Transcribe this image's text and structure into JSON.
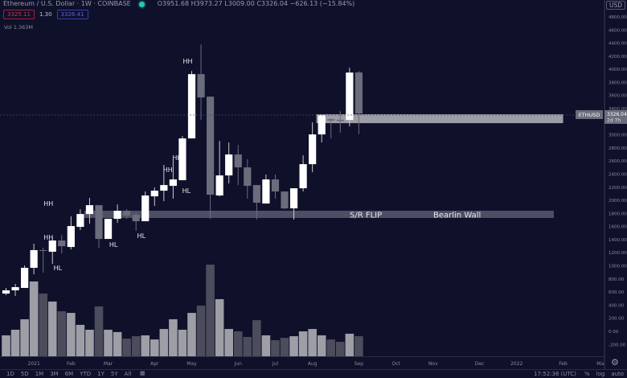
{
  "header": {
    "symbol_title": "Ethereum / U.S. Dollar · 1W · COINBASE",
    "ohlc": "O3951.68 H3973.27 L3009.00 C3326.04 −626.13 (−15.84%)",
    "bid": "3325.11",
    "spread": "1.30",
    "ask": "3326.41",
    "volume": "Vol  1.363M",
    "currency": "USD"
  },
  "price_tag": {
    "symbol": "ETHUSD",
    "price": "3326.04",
    "countdown": "2d 7h"
  },
  "bottom_bar": {
    "ranges": [
      "1D",
      "5D",
      "1M",
      "3M",
      "6M",
      "YTD",
      "1Y",
      "5Y",
      "All"
    ],
    "time": "17:52:36 (UTC)",
    "percent": "%",
    "log": "log",
    "auto": "auto"
  },
  "colors": {
    "background": "#0f102a",
    "up": "#ffffff",
    "down": "#6b6c7c",
    "volume_up": "#9d9ea6",
    "volume_down": "#4b4c5c",
    "band_upper": "#a4a5ad",
    "band_lower": "#55566a"
  },
  "chart_data": {
    "type": "candlestick",
    "interval": "1W",
    "xlabels": [
      {
        "date": "2021-01-04",
        "label": "2021"
      },
      {
        "date": "2021-02-01",
        "label": "Feb"
      },
      {
        "date": "2021-03-01",
        "label": "Mar"
      },
      {
        "date": "2021-04-05",
        "label": "Apr"
      },
      {
        "date": "2021-05-03",
        "label": "May"
      },
      {
        "date": "2021-06-07",
        "label": "Jun"
      },
      {
        "date": "2021-07-05",
        "label": "Jul"
      },
      {
        "date": "2021-08-02",
        "label": "Aug"
      },
      {
        "date": "2021-09-06",
        "label": "Sep"
      },
      {
        "date": "2021-10-04",
        "label": "Oct"
      },
      {
        "date": "2021-11-01",
        "label": "Nov"
      },
      {
        "date": "2021-12-06",
        "label": "Dec"
      },
      {
        "date": "2022-01-03",
        "label": "2022"
      },
      {
        "date": "2022-02-07",
        "label": "Feb"
      },
      {
        "date": "2022-03-07",
        "label": "Ma"
      }
    ],
    "yticks": [
      4800,
      4600,
      4400,
      4200,
      4000,
      3800,
      3600,
      3400,
      3000,
      2800,
      2600,
      2400,
      2200,
      2000,
      1800,
      1600,
      1400,
      1200,
      1000,
      800,
      600,
      400,
      200,
      0,
      -200
    ],
    "ytick_labels": [
      "4800.00",
      "4600.00",
      "4400.00",
      "4200.00",
      "4000.00",
      "3800.00",
      "3600.00",
      "3400.00",
      "3000.00",
      "2800.00",
      "2600.00",
      "2400.00",
      "2200.00",
      "2000.00",
      "1800.00",
      "1600.00",
      "1400.00",
      "1200.00",
      "1000.00",
      "800.00",
      "600.00",
      "400.00",
      "200.00",
      "0.00",
      "-200.00"
    ],
    "candles": [
      {
        "d": "2020-12-14",
        "o": 577,
        "h": 663,
        "l": 552,
        "c": 626,
        "v": 1.42
      },
      {
        "d": "2020-12-21",
        "o": 626,
        "h": 724,
        "l": 540,
        "c": 675,
        "v": 1.8
      },
      {
        "d": "2020-12-28",
        "o": 663,
        "h": 1006,
        "l": 663,
        "c": 970,
        "v": 2.51
      },
      {
        "d": "2021-01-04",
        "o": 970,
        "h": 1338,
        "l": 871,
        "c": 1240,
        "v": 5.07
      },
      {
        "d": "2021-01-11",
        "o": 1240,
        "h": 1276,
        "l": 896,
        "c": 1230,
        "v": 4.25
      },
      {
        "d": "2021-01-18",
        "o": 1215,
        "h": 1436,
        "l": 1030,
        "c": 1387,
        "v": 3.71
      },
      {
        "d": "2021-01-25",
        "o": 1387,
        "h": 1472,
        "l": 1190,
        "c": 1300,
        "v": 3.05
      },
      {
        "d": "2021-02-01",
        "o": 1288,
        "h": 1755,
        "l": 1251,
        "c": 1607,
        "v": 2.94
      },
      {
        "d": "2021-02-08",
        "o": 1595,
        "h": 1865,
        "l": 1546,
        "c": 1791,
        "v": 2.13
      },
      {
        "d": "2021-02-15",
        "o": 1791,
        "h": 2037,
        "l": 1644,
        "c": 1926,
        "v": 1.8
      },
      {
        "d": "2021-02-22",
        "o": 1926,
        "h": 1926,
        "l": 1276,
        "c": 1411,
        "v": 3.38
      },
      {
        "d": "2021-03-01",
        "o": 1411,
        "h": 1718,
        "l": 1411,
        "c": 1718,
        "v": 1.8
      },
      {
        "d": "2021-03-08",
        "o": 1718,
        "h": 1939,
        "l": 1656,
        "c": 1840,
        "v": 1.64
      },
      {
        "d": "2021-03-15",
        "o": 1840,
        "h": 1865,
        "l": 1718,
        "c": 1767,
        "v": 1.2
      },
      {
        "d": "2021-03-22",
        "o": 1780,
        "h": 1816,
        "l": 1534,
        "c": 1681,
        "v": 1.36
      },
      {
        "d": "2021-03-29",
        "o": 1681,
        "h": 2135,
        "l": 1681,
        "c": 2074,
        "v": 1.42
      },
      {
        "d": "2021-04-05",
        "o": 2061,
        "h": 2196,
        "l": 1914,
        "c": 2147,
        "v": 1.14
      },
      {
        "d": "2021-04-12",
        "o": 2147,
        "h": 2540,
        "l": 1988,
        "c": 2233,
        "v": 1.85
      },
      {
        "d": "2021-04-19",
        "o": 2221,
        "h": 2638,
        "l": 2025,
        "c": 2319,
        "v": 2.51
      },
      {
        "d": "2021-04-26",
        "o": 2307,
        "h": 2982,
        "l": 2307,
        "c": 2945,
        "v": 1.8
      },
      {
        "d": "2021-05-03",
        "o": 2945,
        "h": 3975,
        "l": 2945,
        "c": 3926,
        "v": 2.94
      },
      {
        "d": "2021-05-10",
        "o": 3926,
        "h": 4380,
        "l": 3227,
        "c": 3570,
        "v": 3.43
      },
      {
        "d": "2021-05-17",
        "o": 3583,
        "h": 3583,
        "l": 1718,
        "c": 2086,
        "v": 6.21
      },
      {
        "d": "2021-05-24",
        "o": 2074,
        "h": 2908,
        "l": 2061,
        "c": 2380,
        "v": 3.87
      },
      {
        "d": "2021-05-31",
        "o": 2380,
        "h": 2883,
        "l": 2258,
        "c": 2700,
        "v": 1.85
      },
      {
        "d": "2021-06-07",
        "o": 2700,
        "h": 2847,
        "l": 2233,
        "c": 2503,
        "v": 1.69
      },
      {
        "d": "2021-06-14",
        "o": 2503,
        "h": 2626,
        "l": 2025,
        "c": 2221,
        "v": 1.31
      },
      {
        "d": "2021-06-21",
        "o": 2233,
        "h": 2233,
        "l": 1706,
        "c": 1963,
        "v": 2.45
      },
      {
        "d": "2021-06-28",
        "o": 1951,
        "h": 2393,
        "l": 1951,
        "c": 2319,
        "v": 1.42
      },
      {
        "d": "2021-07-05",
        "o": 2319,
        "h": 2393,
        "l": 2025,
        "c": 2135,
        "v": 1.09
      },
      {
        "d": "2021-07-12",
        "o": 2135,
        "h": 2135,
        "l": 1865,
        "c": 1877,
        "v": 1.25
      },
      {
        "d": "2021-07-19",
        "o": 1877,
        "h": 2184,
        "l": 1706,
        "c": 2184,
        "v": 1.36
      },
      {
        "d": "2021-07-26",
        "o": 2184,
        "h": 2687,
        "l": 2135,
        "c": 2552,
        "v": 1.69
      },
      {
        "d": "2021-08-02",
        "o": 2552,
        "h": 3190,
        "l": 2429,
        "c": 3006,
        "v": 1.85
      },
      {
        "d": "2021-08-09",
        "o": 3006,
        "h": 3300,
        "l": 2883,
        "c": 3300,
        "v": 1.42
      },
      {
        "d": "2021-08-16",
        "o": 3240,
        "h": 3250,
        "l": 2945,
        "c": 3215,
        "v": 1.14
      },
      {
        "d": "2021-08-23",
        "o": 3230,
        "h": 3362,
        "l": 3030,
        "c": 3210,
        "v": 0.98
      },
      {
        "d": "2021-08-30",
        "o": 3227,
        "h": 4024,
        "l": 3129,
        "c": 3950,
        "v": 1.53
      },
      {
        "d": "2021-09-06",
        "o": 3951.68,
        "h": 3973.27,
        "l": 3009.0,
        "c": 3326.04,
        "v": 1.363
      }
    ],
    "zones": [
      {
        "label": "S/R FLIP",
        "label2": "Bearlin Wall",
        "from": "2021-02-11",
        "to": "2022-01-31",
        "low": 1731,
        "high": 1841,
        "kind": "lower"
      },
      {
        "label": "",
        "label2": "",
        "from": "2021-08-05",
        "to": "2022-02-07",
        "low": 3178,
        "high": 3314,
        "kind": "upper"
      }
    ],
    "annotations": [
      {
        "text": "HH",
        "date": "2021-01-15",
        "price": 1951
      },
      {
        "text": "HH",
        "date": "2021-01-15",
        "price": 1436
      },
      {
        "text": "HL",
        "date": "2021-01-22",
        "price": 969
      },
      {
        "text": "HL",
        "date": "2021-03-05",
        "price": 1325
      },
      {
        "text": "HL",
        "date": "2021-03-26",
        "price": 1460
      },
      {
        "text": "HH",
        "date": "2021-04-15",
        "price": 2466
      },
      {
        "text": "HH",
        "date": "2021-04-22",
        "price": 2650
      },
      {
        "text": "HL",
        "date": "2021-04-29",
        "price": 2147
      },
      {
        "text": "HH",
        "date": "2021-04-30",
        "price": 4123
      }
    ],
    "last_price": 3326.04,
    "grid": false
  }
}
